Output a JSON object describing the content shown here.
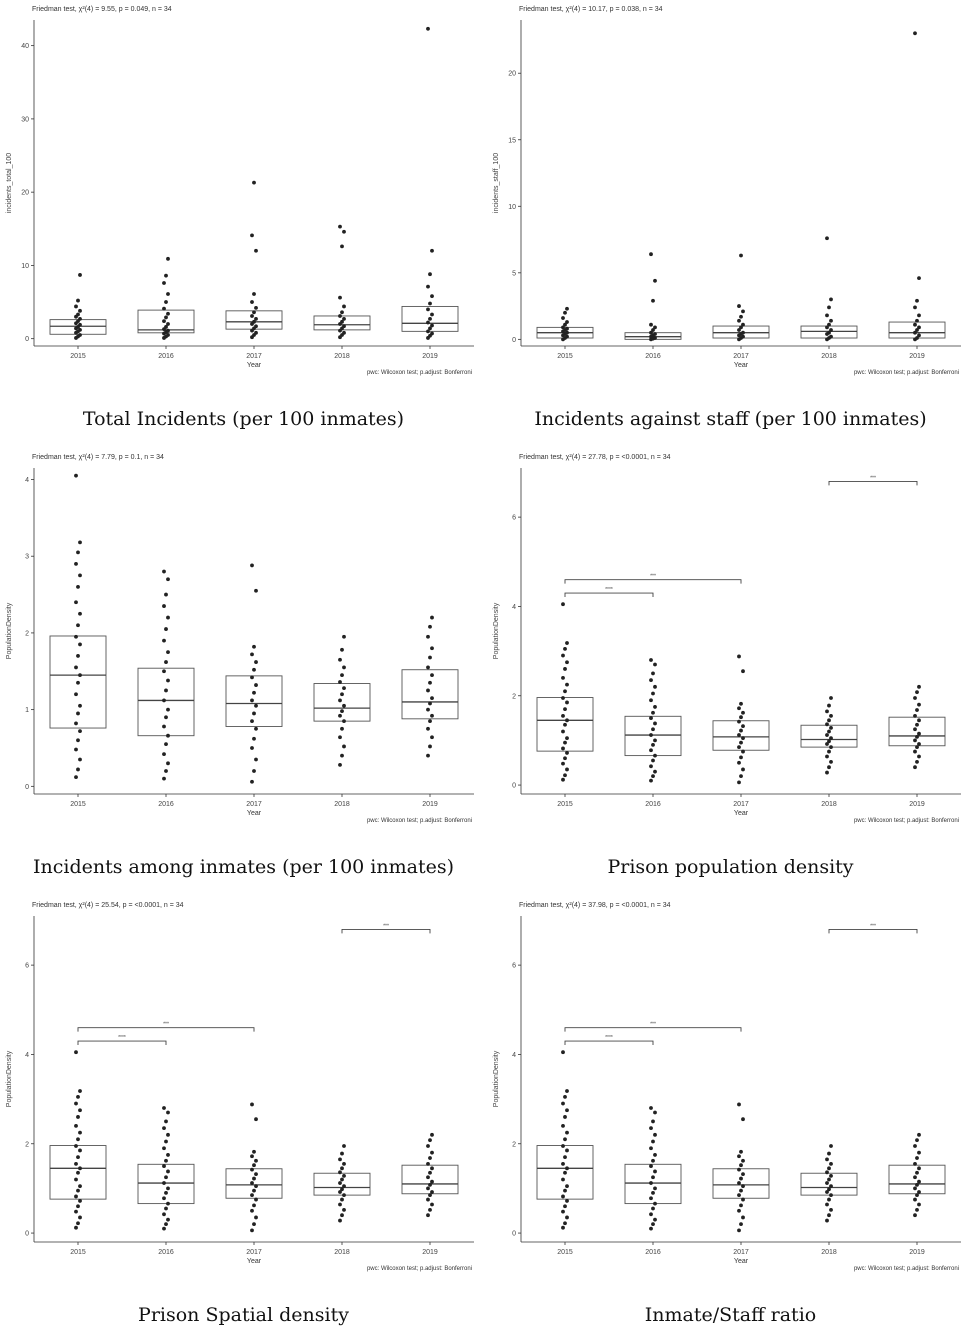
{
  "chart_data": [
    {
      "type": "boxplot",
      "caption": "Total Incidents (per 100 inmates)",
      "stat_text": "Friedman test, χ²(4) = 9.55, p = 0.049, n = 34",
      "xlabel": "Year",
      "ylabel": "incidents_total_100",
      "footnote": "pwc: Wilcoxon test; p.adjust: Bonferroni",
      "categories": [
        "2015",
        "2016",
        "2017",
        "2018",
        "2019"
      ],
      "ylim": [
        -1,
        43.5
      ],
      "yticks": [
        0,
        10,
        20,
        30,
        40
      ],
      "boxes": [
        {
          "q1": 0.6,
          "median": 1.7,
          "q3": 2.6
        },
        {
          "q1": 0.8,
          "median": 1.2,
          "q3": 3.9
        },
        {
          "q1": 1.3,
          "median": 2.3,
          "q3": 3.8
        },
        {
          "q1": 1.2,
          "median": 1.9,
          "q3": 3.1
        },
        {
          "q1": 1.0,
          "median": 2.1,
          "q3": 4.4
        }
      ],
      "points": [
        [
          0.1,
          0.3,
          0.5,
          0.8,
          1.0,
          1.2,
          1.4,
          1.6,
          1.9,
          2.1,
          2.4,
          2.7,
          3.0,
          3.3,
          3.8,
          4.4,
          5.2,
          8.7
        ],
        [
          0.1,
          0.3,
          0.5,
          0.7,
          0.9,
          1.1,
          1.3,
          1.6,
          2.0,
          2.4,
          2.9,
          3.4,
          4.1,
          5.0,
          6.1,
          7.6,
          8.6,
          10.9
        ],
        [
          0.2,
          0.5,
          0.8,
          1.1,
          1.4,
          1.7,
          2.0,
          2.3,
          2.7,
          3.1,
          3.6,
          4.2,
          5.0,
          6.1,
          12.0,
          14.1,
          21.3
        ],
        [
          0.2,
          0.5,
          0.8,
          1.1,
          1.4,
          1.7,
          2.0,
          2.3,
          2.7,
          3.1,
          3.6,
          4.4,
          5.6,
          12.6,
          14.6,
          15.3
        ],
        [
          0.1,
          0.4,
          0.7,
          1.0,
          1.4,
          1.8,
          2.2,
          2.7,
          3.3,
          4.0,
          4.8,
          5.8,
          7.1,
          8.8,
          12.0,
          42.3
        ]
      ],
      "brackets": []
    },
    {
      "type": "boxplot",
      "caption": "Incidents against staff (per 100 inmates)",
      "stat_text": "Friedman test, χ²(4) = 10.17, p = 0.038, n = 34",
      "xlabel": "Year",
      "ylabel": "incidents_staff_100",
      "footnote": "pwc: Wilcoxon test; p.adjust: Bonferroni",
      "categories": [
        "2015",
        "2016",
        "2017",
        "2018",
        "2019"
      ],
      "ylim": [
        -0.5,
        24
      ],
      "yticks": [
        0,
        5,
        10,
        15,
        20
      ],
      "boxes": [
        {
          "q1": 0.1,
          "median": 0.5,
          "q3": 0.9
        },
        {
          "q1": 0.0,
          "median": 0.2,
          "q3": 0.5
        },
        {
          "q1": 0.1,
          "median": 0.5,
          "q3": 1.0
        },
        {
          "q1": 0.1,
          "median": 0.6,
          "q3": 1.0
        },
        {
          "q1": 0.1,
          "median": 0.5,
          "q3": 1.3
        }
      ],
      "points": [
        [
          0.0,
          0.1,
          0.2,
          0.3,
          0.4,
          0.5,
          0.6,
          0.7,
          0.8,
          0.9,
          1.1,
          1.3,
          1.6,
          2.0,
          2.3
        ],
        [
          0.0,
          0.05,
          0.1,
          0.2,
          0.3,
          0.4,
          0.5,
          0.7,
          0.9,
          1.1,
          2.9,
          4.4,
          6.4
        ],
        [
          0.0,
          0.1,
          0.2,
          0.3,
          0.4,
          0.5,
          0.7,
          0.9,
          1.1,
          1.4,
          1.7,
          2.1,
          2.5,
          6.3
        ],
        [
          0.0,
          0.1,
          0.2,
          0.4,
          0.5,
          0.7,
          0.9,
          1.1,
          1.4,
          1.8,
          2.4,
          3.0,
          7.6
        ],
        [
          0.0,
          0.1,
          0.3,
          0.5,
          0.7,
          0.9,
          1.1,
          1.4,
          1.8,
          2.4,
          2.9,
          4.6,
          23.0
        ]
      ],
      "brackets": []
    },
    {
      "type": "boxplot",
      "caption": "Incidents among inmates (per 100 inmates)",
      "stat_text": "Friedman test, χ²(4) = 7.79, p = 0.1, n = 34",
      "xlabel": "Year",
      "ylabel": "PopulationDensity",
      "footnote": "pwc: Wilcoxon test; p.adjust: Bonferroni",
      "categories": [
        "2015",
        "2016",
        "2017",
        "2018",
        "2019"
      ],
      "ylim": [
        -0.1,
        4.15
      ],
      "yticks": [
        0,
        1,
        2,
        3,
        4
      ],
      "boxes": [
        {
          "q1": 0.76,
          "median": 1.45,
          "q3": 1.96
        },
        {
          "q1": 0.66,
          "median": 1.12,
          "q3": 1.54
        },
        {
          "q1": 0.78,
          "median": 1.08,
          "q3": 1.44
        },
        {
          "q1": 0.85,
          "median": 1.02,
          "q3": 1.34
        },
        {
          "q1": 0.88,
          "median": 1.1,
          "q3": 1.52
        }
      ],
      "points": [
        [
          0.12,
          0.22,
          0.35,
          0.48,
          0.6,
          0.72,
          0.82,
          0.95,
          1.05,
          1.2,
          1.35,
          1.45,
          1.55,
          1.7,
          1.85,
          1.95,
          2.1,
          2.25,
          2.4,
          2.6,
          2.75,
          2.9,
          3.05,
          3.18,
          4.05
        ],
        [
          0.1,
          0.2,
          0.3,
          0.42,
          0.55,
          0.66,
          0.78,
          0.9,
          1.0,
          1.12,
          1.25,
          1.38,
          1.5,
          1.62,
          1.75,
          1.9,
          2.05,
          2.2,
          2.35,
          2.5,
          2.7,
          2.8
        ],
        [
          0.06,
          0.2,
          0.35,
          0.5,
          0.62,
          0.75,
          0.85,
          0.95,
          1.05,
          1.12,
          1.22,
          1.32,
          1.42,
          1.52,
          1.62,
          1.72,
          1.82,
          2.55,
          2.88
        ],
        [
          0.28,
          0.4,
          0.52,
          0.64,
          0.75,
          0.85,
          0.92,
          0.98,
          1.05,
          1.12,
          1.2,
          1.28,
          1.36,
          1.45,
          1.55,
          1.65,
          1.78,
          1.95
        ],
        [
          0.4,
          0.52,
          0.64,
          0.75,
          0.85,
          0.92,
          1.0,
          1.08,
          1.15,
          1.25,
          1.35,
          1.45,
          1.55,
          1.68,
          1.8,
          1.95,
          2.08,
          2.2
        ]
      ],
      "brackets": []
    },
    {
      "type": "boxplot",
      "caption": "Prison population density",
      "stat_text": "Friedman test, χ²(4) = 27.78, p = <0.0001, n = 34",
      "xlabel": "Year",
      "ylabel": "PopulationDensity",
      "footnote": "pwc: Wilcoxon test; p.adjust: Bonferroni",
      "categories": [
        "2015",
        "2016",
        "2017",
        "2018",
        "2019"
      ],
      "ylim": [
        -0.2,
        7.1
      ],
      "yticks": [
        0,
        2,
        4,
        6
      ],
      "boxes": [
        {
          "q1": 0.76,
          "median": 1.45,
          "q3": 1.96
        },
        {
          "q1": 0.66,
          "median": 1.12,
          "q3": 1.54
        },
        {
          "q1": 0.78,
          "median": 1.08,
          "q3": 1.44
        },
        {
          "q1": 0.85,
          "median": 1.02,
          "q3": 1.34
        },
        {
          "q1": 0.88,
          "median": 1.1,
          "q3": 1.52
        }
      ],
      "points": [
        [
          0.12,
          0.22,
          0.35,
          0.48,
          0.6,
          0.72,
          0.82,
          0.95,
          1.05,
          1.2,
          1.35,
          1.45,
          1.55,
          1.7,
          1.85,
          1.95,
          2.1,
          2.25,
          2.4,
          2.6,
          2.75,
          2.9,
          3.05,
          3.18,
          4.05
        ],
        [
          0.1,
          0.2,
          0.3,
          0.42,
          0.55,
          0.66,
          0.78,
          0.9,
          1.0,
          1.12,
          1.25,
          1.38,
          1.5,
          1.62,
          1.75,
          1.9,
          2.05,
          2.2,
          2.35,
          2.5,
          2.7,
          2.8
        ],
        [
          0.06,
          0.2,
          0.35,
          0.5,
          0.62,
          0.75,
          0.85,
          0.95,
          1.05,
          1.12,
          1.22,
          1.32,
          1.42,
          1.52,
          1.62,
          1.72,
          1.82,
          2.55,
          2.88
        ],
        [
          0.28,
          0.4,
          0.52,
          0.64,
          0.75,
          0.85,
          0.92,
          0.98,
          1.05,
          1.12,
          1.2,
          1.28,
          1.36,
          1.45,
          1.55,
          1.65,
          1.78,
          1.95
        ],
        [
          0.4,
          0.52,
          0.64,
          0.75,
          0.85,
          0.92,
          1.0,
          1.08,
          1.15,
          1.25,
          1.35,
          1.45,
          1.55,
          1.68,
          1.8,
          1.95,
          2.08,
          2.2
        ]
      ],
      "brackets": [
        {
          "from": 0,
          "to": 1,
          "y": 4.3,
          "label": "****"
        },
        {
          "from": 0,
          "to": 2,
          "y": 4.6,
          "label": "***"
        },
        {
          "from": 3,
          "to": 4,
          "y": 6.8,
          "label": "***"
        }
      ]
    },
    {
      "type": "boxplot",
      "caption": "Prison Spatial density",
      "stat_text": "Friedman test, χ²(4) = 25.54, p = <0.0001, n = 34",
      "xlabel": "Year",
      "ylabel": "PopulationDensity",
      "footnote": "pwc: Wilcoxon test; p.adjust: Bonferroni",
      "categories": [
        "2015",
        "2016",
        "2017",
        "2018",
        "2019"
      ],
      "ylim": [
        -0.2,
        7.1
      ],
      "yticks": [
        0,
        2,
        4,
        6
      ],
      "boxes": [
        {
          "q1": 0.76,
          "median": 1.45,
          "q3": 1.96
        },
        {
          "q1": 0.66,
          "median": 1.12,
          "q3": 1.54
        },
        {
          "q1": 0.78,
          "median": 1.08,
          "q3": 1.44
        },
        {
          "q1": 0.85,
          "median": 1.02,
          "q3": 1.34
        },
        {
          "q1": 0.88,
          "median": 1.1,
          "q3": 1.52
        }
      ],
      "points": [
        [
          0.12,
          0.22,
          0.35,
          0.48,
          0.6,
          0.72,
          0.82,
          0.95,
          1.05,
          1.2,
          1.35,
          1.45,
          1.55,
          1.7,
          1.85,
          1.95,
          2.1,
          2.25,
          2.4,
          2.6,
          2.75,
          2.9,
          3.05,
          3.18,
          4.05
        ],
        [
          0.1,
          0.2,
          0.3,
          0.42,
          0.55,
          0.66,
          0.78,
          0.9,
          1.0,
          1.12,
          1.25,
          1.38,
          1.5,
          1.62,
          1.75,
          1.9,
          2.05,
          2.2,
          2.35,
          2.5,
          2.7,
          2.8
        ],
        [
          0.06,
          0.2,
          0.35,
          0.5,
          0.62,
          0.75,
          0.85,
          0.95,
          1.05,
          1.12,
          1.22,
          1.32,
          1.42,
          1.52,
          1.62,
          1.72,
          1.82,
          2.55,
          2.88
        ],
        [
          0.28,
          0.4,
          0.52,
          0.64,
          0.75,
          0.85,
          0.92,
          0.98,
          1.05,
          1.12,
          1.2,
          1.28,
          1.36,
          1.45,
          1.55,
          1.65,
          1.78,
          1.95
        ],
        [
          0.4,
          0.52,
          0.64,
          0.75,
          0.85,
          0.92,
          1.0,
          1.08,
          1.15,
          1.25,
          1.35,
          1.45,
          1.55,
          1.68,
          1.8,
          1.95,
          2.08,
          2.2
        ]
      ],
      "brackets": [
        {
          "from": 0,
          "to": 1,
          "y": 4.3,
          "label": "****"
        },
        {
          "from": 0,
          "to": 2,
          "y": 4.6,
          "label": "***"
        },
        {
          "from": 3,
          "to": 4,
          "y": 6.8,
          "label": "***"
        }
      ]
    },
    {
      "type": "boxplot",
      "caption": "Inmate/Staff ratio",
      "stat_text": "Friedman test, χ²(4) = 37.98, p = <0.0001, n = 34",
      "xlabel": "Year",
      "ylabel": "PopulationDensity",
      "footnote": "pwc: Wilcoxon test; p.adjust: Bonferroni",
      "categories": [
        "2015",
        "2016",
        "2017",
        "2018",
        "2019"
      ],
      "ylim": [
        -0.2,
        7.1
      ],
      "yticks": [
        0,
        2,
        4,
        6
      ],
      "boxes": [
        {
          "q1": 0.76,
          "median": 1.45,
          "q3": 1.96
        },
        {
          "q1": 0.66,
          "median": 1.12,
          "q3": 1.54
        },
        {
          "q1": 0.78,
          "median": 1.08,
          "q3": 1.44
        },
        {
          "q1": 0.85,
          "median": 1.02,
          "q3": 1.34
        },
        {
          "q1": 0.88,
          "median": 1.1,
          "q3": 1.52
        }
      ],
      "points": [
        [
          0.12,
          0.22,
          0.35,
          0.48,
          0.6,
          0.72,
          0.82,
          0.95,
          1.05,
          1.2,
          1.35,
          1.45,
          1.55,
          1.7,
          1.85,
          1.95,
          2.1,
          2.25,
          2.4,
          2.6,
          2.75,
          2.9,
          3.05,
          3.18,
          4.05
        ],
        [
          0.1,
          0.2,
          0.3,
          0.42,
          0.55,
          0.66,
          0.78,
          0.9,
          1.0,
          1.12,
          1.25,
          1.38,
          1.5,
          1.62,
          1.75,
          1.9,
          2.05,
          2.2,
          2.35,
          2.5,
          2.7,
          2.8
        ],
        [
          0.06,
          0.2,
          0.35,
          0.5,
          0.62,
          0.75,
          0.85,
          0.95,
          1.05,
          1.12,
          1.22,
          1.32,
          1.42,
          1.52,
          1.62,
          1.72,
          1.82,
          2.55,
          2.88
        ],
        [
          0.28,
          0.4,
          0.52,
          0.64,
          0.75,
          0.85,
          0.92,
          0.98,
          1.05,
          1.12,
          1.2,
          1.28,
          1.36,
          1.45,
          1.55,
          1.65,
          1.78,
          1.95
        ],
        [
          0.4,
          0.52,
          0.64,
          0.75,
          0.85,
          0.92,
          1.0,
          1.08,
          1.15,
          1.25,
          1.35,
          1.45,
          1.55,
          1.68,
          1.8,
          1.95,
          2.08,
          2.2
        ]
      ],
      "brackets": [
        {
          "from": 0,
          "to": 1,
          "y": 4.3,
          "label": "****"
        },
        {
          "from": 0,
          "to": 2,
          "y": 4.6,
          "label": "***"
        },
        {
          "from": 3,
          "to": 4,
          "y": 6.8,
          "label": "***"
        }
      ]
    }
  ]
}
